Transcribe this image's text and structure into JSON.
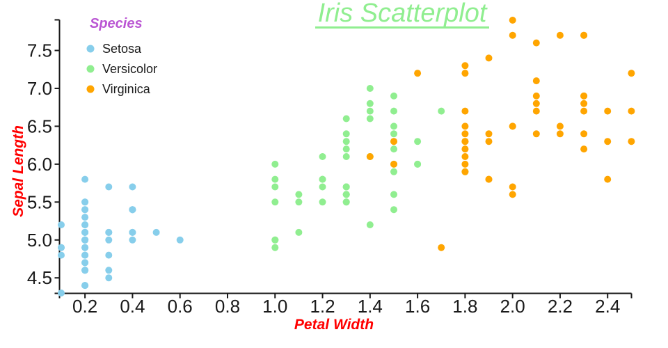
{
  "title": {
    "text": "Iris Scatterplot",
    "color": "#90EE90"
  },
  "legend": {
    "title": "Species",
    "title_color": "#BA55D3",
    "items": [
      {
        "label": "Setosa",
        "color": "#87CEEB"
      },
      {
        "label": "Versicolor",
        "color": "#90EE90"
      },
      {
        "label": "Virginica",
        "color": "#FFA500"
      }
    ]
  },
  "chart_data": {
    "type": "scatter",
    "title": "Iris Scatterplot",
    "xlabel": "Petal Width",
    "ylabel": "Sepal Length",
    "axis_label_color": "#FF0000",
    "xlim": [
      0.1,
      2.5
    ],
    "ylim": [
      4.3,
      7.9
    ],
    "x_ticks": [
      "0.2",
      "0.4",
      "0.6",
      "0.8",
      "1.0",
      "1.2",
      "1.4",
      "1.6",
      "1.8",
      "2.0",
      "2.2",
      "2.4"
    ],
    "y_ticks": [
      "4.5",
      "5.0",
      "5.5",
      "6.0",
      "6.5",
      "7.0",
      "7.5"
    ],
    "grid": false,
    "legend_position": "upper-left-inside",
    "axis_color": "#1a1a1a",
    "series": [
      {
        "name": "Setosa",
        "color": "#87CEEB",
        "points": [
          [
            0.2,
            5.1
          ],
          [
            0.2,
            4.9
          ],
          [
            0.2,
            4.7
          ],
          [
            0.2,
            4.6
          ],
          [
            0.2,
            5.0
          ],
          [
            0.4,
            5.4
          ],
          [
            0.3,
            4.6
          ],
          [
            0.2,
            5.0
          ],
          [
            0.2,
            4.4
          ],
          [
            0.1,
            4.9
          ],
          [
            0.2,
            5.4
          ],
          [
            0.2,
            4.8
          ],
          [
            0.1,
            4.8
          ],
          [
            0.1,
            4.3
          ],
          [
            0.2,
            5.8
          ],
          [
            0.4,
            5.7
          ],
          [
            0.4,
            5.4
          ],
          [
            0.3,
            5.1
          ],
          [
            0.3,
            5.7
          ],
          [
            0.3,
            5.1
          ],
          [
            0.2,
            5.4
          ],
          [
            0.4,
            5.1
          ],
          [
            0.2,
            4.6
          ],
          [
            0.5,
            5.1
          ],
          [
            0.2,
            4.8
          ],
          [
            0.2,
            5.0
          ],
          [
            0.4,
            5.0
          ],
          [
            0.2,
            5.2
          ],
          [
            0.2,
            5.2
          ],
          [
            0.2,
            4.7
          ],
          [
            0.2,
            4.8
          ],
          [
            0.4,
            5.4
          ],
          [
            0.1,
            5.2
          ],
          [
            0.2,
            5.5
          ],
          [
            0.2,
            4.9
          ],
          [
            0.2,
            5.0
          ],
          [
            0.2,
            5.5
          ],
          [
            0.1,
            4.9
          ],
          [
            0.2,
            4.4
          ],
          [
            0.2,
            5.1
          ],
          [
            0.3,
            5.0
          ],
          [
            0.3,
            4.5
          ],
          [
            0.2,
            4.4
          ],
          [
            0.6,
            5.0
          ],
          [
            0.4,
            5.1
          ],
          [
            0.3,
            4.8
          ],
          [
            0.2,
            5.1
          ],
          [
            0.2,
            4.6
          ],
          [
            0.2,
            5.3
          ],
          [
            0.2,
            5.0
          ]
        ]
      },
      {
        "name": "Versicolor",
        "color": "#90EE90",
        "points": [
          [
            1.4,
            7.0
          ],
          [
            1.5,
            6.4
          ],
          [
            1.5,
            6.9
          ],
          [
            1.3,
            5.5
          ],
          [
            1.5,
            6.5
          ],
          [
            1.3,
            5.7
          ],
          [
            1.6,
            6.3
          ],
          [
            1.0,
            4.9
          ],
          [
            1.3,
            6.6
          ],
          [
            1.4,
            5.2
          ],
          [
            1.0,
            5.0
          ],
          [
            1.5,
            5.9
          ],
          [
            1.0,
            6.0
          ],
          [
            1.4,
            6.1
          ],
          [
            1.3,
            5.6
          ],
          [
            1.4,
            6.7
          ],
          [
            1.5,
            5.6
          ],
          [
            1.0,
            5.8
          ],
          [
            1.5,
            6.2
          ],
          [
            1.1,
            5.6
          ],
          [
            1.8,
            5.9
          ],
          [
            1.3,
            6.1
          ],
          [
            1.5,
            6.3
          ],
          [
            1.2,
            6.1
          ],
          [
            1.3,
            6.4
          ],
          [
            1.4,
            6.6
          ],
          [
            1.4,
            6.8
          ],
          [
            1.7,
            6.7
          ],
          [
            1.5,
            6.0
          ],
          [
            1.0,
            5.7
          ],
          [
            1.1,
            5.5
          ],
          [
            1.0,
            5.5
          ],
          [
            1.2,
            5.8
          ],
          [
            1.6,
            6.0
          ],
          [
            1.5,
            5.4
          ],
          [
            1.6,
            6.0
          ],
          [
            1.5,
            6.7
          ],
          [
            1.3,
            6.3
          ],
          [
            1.3,
            5.6
          ],
          [
            1.3,
            5.5
          ],
          [
            1.2,
            5.5
          ],
          [
            1.4,
            6.1
          ],
          [
            1.2,
            5.8
          ],
          [
            1.0,
            5.0
          ],
          [
            1.3,
            5.6
          ],
          [
            1.2,
            5.7
          ],
          [
            1.3,
            5.7
          ],
          [
            1.3,
            6.2
          ],
          [
            1.1,
            5.1
          ],
          [
            1.3,
            5.7
          ]
        ]
      },
      {
        "name": "Virginica",
        "color": "#FFA500",
        "points": [
          [
            2.5,
            6.3
          ],
          [
            1.9,
            5.8
          ],
          [
            2.1,
            7.1
          ],
          [
            1.8,
            6.3
          ],
          [
            2.2,
            6.5
          ],
          [
            2.1,
            7.6
          ],
          [
            1.7,
            4.9
          ],
          [
            1.8,
            7.3
          ],
          [
            1.8,
            6.7
          ],
          [
            2.5,
            7.2
          ],
          [
            2.0,
            6.5
          ],
          [
            1.9,
            6.4
          ],
          [
            2.1,
            6.8
          ],
          [
            2.0,
            5.7
          ],
          [
            2.4,
            5.8
          ],
          [
            2.3,
            6.4
          ],
          [
            1.8,
            6.5
          ],
          [
            2.2,
            7.7
          ],
          [
            2.3,
            7.7
          ],
          [
            1.5,
            6.0
          ],
          [
            2.3,
            6.9
          ],
          [
            2.0,
            5.6
          ],
          [
            2.0,
            7.7
          ],
          [
            1.8,
            6.3
          ],
          [
            2.1,
            6.7
          ],
          [
            1.8,
            7.2
          ],
          [
            1.8,
            6.2
          ],
          [
            1.8,
            6.1
          ],
          [
            2.1,
            6.4
          ],
          [
            1.6,
            7.2
          ],
          [
            1.9,
            7.4
          ],
          [
            2.0,
            7.9
          ],
          [
            2.2,
            6.4
          ],
          [
            1.5,
            6.3
          ],
          [
            1.4,
            6.1
          ],
          [
            2.3,
            7.7
          ],
          [
            2.4,
            6.3
          ],
          [
            1.8,
            6.4
          ],
          [
            1.8,
            6.0
          ],
          [
            2.1,
            6.9
          ],
          [
            2.4,
            6.7
          ],
          [
            2.3,
            6.9
          ],
          [
            1.9,
            5.8
          ],
          [
            2.3,
            6.8
          ],
          [
            2.5,
            6.7
          ],
          [
            2.3,
            6.7
          ],
          [
            1.9,
            6.3
          ],
          [
            2.0,
            6.5
          ],
          [
            2.3,
            6.2
          ],
          [
            1.8,
            5.9
          ]
        ]
      }
    ]
  }
}
